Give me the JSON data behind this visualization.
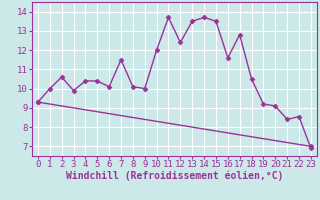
{
  "title": "",
  "xlabel": "Windchill (Refroidissement éolien,°C)",
  "ylabel": "",
  "background_color": "#cce8e8",
  "grid_color": "#ffffff",
  "line_color": "#993399",
  "xlim": [
    -0.5,
    23.5
  ],
  "ylim": [
    6.5,
    14.5
  ],
  "yticks": [
    7,
    8,
    9,
    10,
    11,
    12,
    13,
    14
  ],
  "xticks": [
    0,
    1,
    2,
    3,
    4,
    5,
    6,
    7,
    8,
    9,
    10,
    11,
    12,
    13,
    14,
    15,
    16,
    17,
    18,
    19,
    20,
    21,
    22,
    23
  ],
  "curve1_x": [
    0,
    1,
    2,
    3,
    4,
    5,
    6,
    7,
    8,
    9,
    10,
    11,
    12,
    13,
    14,
    15,
    16,
    17,
    18,
    19,
    20,
    21,
    22,
    23
  ],
  "curve1_y": [
    9.3,
    10.0,
    10.6,
    9.9,
    10.4,
    10.4,
    10.1,
    11.5,
    10.1,
    10.0,
    12.0,
    13.7,
    12.4,
    13.5,
    13.7,
    13.5,
    11.6,
    12.8,
    10.5,
    9.2,
    9.1,
    8.4,
    8.55,
    6.9
  ],
  "curve2_x": [
    0,
    23
  ],
  "curve2_y": [
    9.3,
    7.0
  ],
  "marker": "D",
  "marker_size": 2.5,
  "line_width": 1.0,
  "font_color": "#993399",
  "xlabel_fontsize": 7,
  "tick_fontsize": 6.5
}
